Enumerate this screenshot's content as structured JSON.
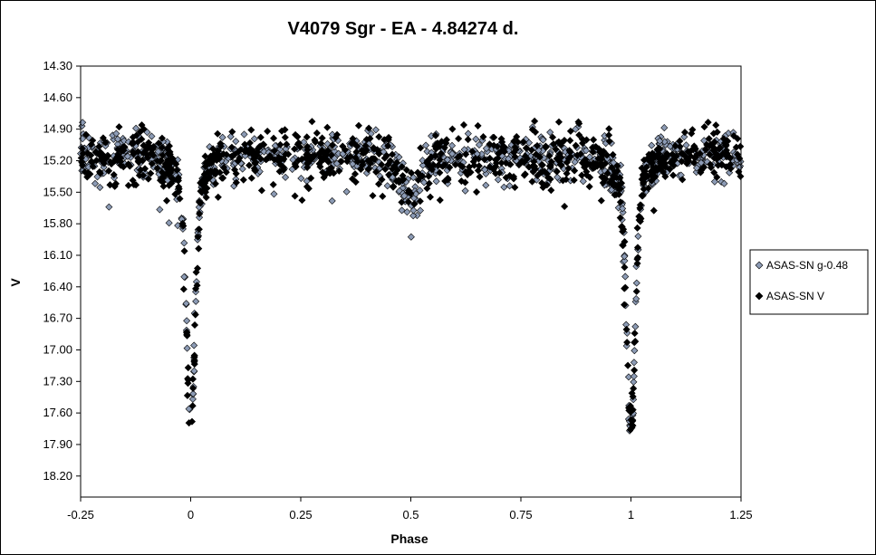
{
  "chart_data": {
    "type": "scatter",
    "title": "V4079 Sgr - EA - 4.84274 d.",
    "xlabel": "Phase",
    "ylabel": "V",
    "xlim": [
      -0.25,
      1.25
    ],
    "ylim": [
      14.3,
      18.4
    ],
    "y_inverted": true,
    "x_ticks": [
      -0.25,
      0,
      0.25,
      0.5,
      0.75,
      1,
      1.25
    ],
    "x_tick_labels": [
      "-0.25",
      "0",
      "0.25",
      "0.5",
      "0.75",
      "1",
      "1.25"
    ],
    "y_ticks": [
      14.3,
      14.6,
      14.9,
      15.2,
      15.5,
      15.8,
      16.1,
      16.4,
      16.7,
      17.0,
      17.3,
      17.6,
      17.9,
      18.2
    ],
    "y_tick_labels": [
      "14.30",
      "14.60",
      "14.90",
      "15.20",
      "15.50",
      "15.80",
      "16.10",
      "16.40",
      "16.70",
      "17.00",
      "17.30",
      "17.60",
      "17.90",
      "18.20"
    ],
    "grid": false,
    "legend_position": "right",
    "light_curve": {
      "baseline_mag": 15.15,
      "primary_eclipse": {
        "phase": 0.0,
        "min_mag": 17.75
      },
      "secondary_eclipse": {
        "phase": 0.5,
        "min_mag": 15.6
      }
    },
    "series": [
      {
        "name": "ASAS-SN g-0.48",
        "color": "#8C9BB5",
        "marker": "diamond",
        "n_points": 900
      },
      {
        "name": "ASAS-SN V",
        "color": "#000000",
        "marker": "diamond",
        "n_points": 900
      }
    ]
  }
}
